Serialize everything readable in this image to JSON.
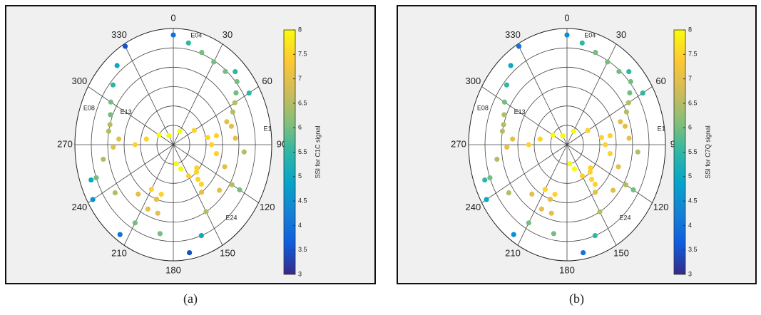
{
  "chart_data": [
    {
      "type": "polar",
      "caption": "(a)",
      "colorbar_label": "SSI for C1C signal",
      "clim": [
        3,
        8
      ],
      "cticks": [
        3,
        3.5,
        4,
        4.5,
        5,
        5.5,
        6,
        6.5,
        7,
        7.5,
        8
      ],
      "thetaticks": [
        0,
        30,
        60,
        90,
        120,
        150,
        180,
        210,
        240,
        270,
        300,
        330
      ],
      "rgrid": [
        15,
        30,
        45,
        60,
        75
      ],
      "rlim": [
        0,
        90
      ],
      "annotations": [
        {
          "text": "E04",
          "az": 14,
          "el": 3
        },
        {
          "text": "E13",
          "az": 300,
          "el": 40
        },
        {
          "text": "E08",
          "az": 290,
          "el": 8
        },
        {
          "text": "E1",
          "az": 82,
          "el": 3
        },
        {
          "text": "E24",
          "az": 137,
          "el": 12
        }
      ],
      "series": [
        {
          "x": [
            330,
            320,
            310,
            300,
            292,
            285,
            280
          ],
          "values": [
            2,
            10,
            18,
            24,
            28,
            30,
            30
          ],
          "ssi": [
            3.5,
            5,
            5.5,
            6,
            6,
            6.5,
            6.5
          ]
        },
        {
          "x": [
            0,
            10,
            20,
            30,
            40,
            50,
            60
          ],
          "values": [
            5,
            10,
            14,
            16,
            16,
            14,
            10
          ],
          "ssi": [
            4,
            5.5,
            6,
            6,
            6,
            6,
            5.5
          ]
        },
        {
          "x": [
            60,
            70,
            80,
            90,
            100,
            110,
            120
          ],
          "values": [
            25,
            38,
            50,
            55,
            50,
            40,
            28
          ],
          "ssi": [
            6.5,
            7,
            7.5,
            7.5,
            7.5,
            7,
            6.5
          ]
        },
        {
          "x": [
            250,
            235,
            220,
            210,
            200,
            195,
            190
          ],
          "values": [
            10,
            25,
            40,
            50,
            45,
            35,
            20
          ],
          "ssi": [
            5,
            6.5,
            7,
            7.5,
            7,
            7,
            6
          ]
        },
        {
          "x": [
            270,
            280,
            300,
            330,
            30,
            60,
            80
          ],
          "values": [
            55,
            65,
            75,
            82,
            78,
            68,
            58
          ],
          "ssi": [
            7.5,
            7.5,
            8,
            8,
            8,
            7.5,
            7.5
          ]
        },
        {
          "x": [
            170,
            160,
            150,
            145,
            140,
            135,
            130
          ],
          "values": [
            5,
            15,
            30,
            45,
            55,
            60,
            62
          ],
          "ssi": [
            3.5,
            5,
            6.5,
            7,
            7.5,
            7.5,
            7.5
          ]
        },
        {
          "x": [
            215,
            210,
            205,
            200,
            196
          ],
          "values": [
            5,
            20,
            35,
            45,
            50
          ],
          "ssi": [
            4,
            6,
            7,
            7,
            7.5
          ]
        },
        {
          "x": [
            240,
            250,
            260,
            268,
            275
          ],
          "values": [
            5,
            15,
            25,
            35,
            40
          ],
          "ssi": [
            4.5,
            6,
            6.5,
            7,
            7
          ]
        },
        {
          "x": [
            45,
            55,
            65,
            75,
            85,
            95
          ],
          "values": [
            10,
            20,
            30,
            35,
            33,
            25
          ],
          "ssi": [
            5.5,
            6,
            6.5,
            7,
            7,
            6.5
          ]
        },
        {
          "x": [
            120,
            130,
            140,
            150,
            160,
            170
          ],
          "values": [
            20,
            35,
            50,
            62,
            70,
            75
          ],
          "ssi": [
            6,
            7,
            7.5,
            7.5,
            8,
            8
          ]
        }
      ]
    },
    {
      "type": "polar",
      "caption": "(b)",
      "colorbar_label": "SSI for C7Q signal",
      "clim": [
        3,
        8
      ],
      "cticks": [
        3,
        3.5,
        4,
        4.5,
        5,
        5.5,
        6,
        6.5,
        7,
        7.5,
        8
      ],
      "thetaticks": [
        0,
        30,
        60,
        90,
        120,
        150,
        180,
        210,
        240,
        270,
        300,
        330
      ],
      "rgrid": [
        15,
        30,
        45,
        60,
        75
      ],
      "rlim": [
        0,
        90
      ],
      "annotations": [
        {
          "text": "E04",
          "az": 14,
          "el": 3
        },
        {
          "text": "E13",
          "az": 300,
          "el": 40
        },
        {
          "text": "E08",
          "az": 290,
          "el": 8
        },
        {
          "text": "E1",
          "az": 82,
          "el": 3
        },
        {
          "text": "E24",
          "az": 137,
          "el": 12
        }
      ],
      "series": [
        {
          "x": [
            330,
            320,
            310,
            300,
            292,
            285,
            280
          ],
          "values": [
            2,
            10,
            18,
            24,
            28,
            30,
            30
          ],
          "ssi": [
            4,
            5,
            5.5,
            6,
            6.5,
            6.5,
            6.5
          ]
        },
        {
          "x": [
            0,
            10,
            20,
            30,
            40,
            50,
            60
          ],
          "values": [
            5,
            10,
            14,
            16,
            16,
            14,
            10
          ],
          "ssi": [
            4.5,
            5.5,
            6,
            6,
            6,
            6,
            5.5
          ]
        },
        {
          "x": [
            60,
            70,
            80,
            90,
            100,
            110,
            120
          ],
          "values": [
            25,
            38,
            50,
            55,
            50,
            40,
            28
          ],
          "ssi": [
            6.5,
            7,
            7.5,
            7.5,
            7.5,
            7,
            6.5
          ]
        },
        {
          "x": [
            250,
            235,
            220,
            210,
            200,
            195,
            190
          ],
          "values": [
            10,
            25,
            40,
            50,
            45,
            35,
            20
          ],
          "ssi": [
            5.5,
            6.5,
            7,
            7.5,
            7,
            7,
            6
          ]
        },
        {
          "x": [
            270,
            280,
            300,
            330,
            30,
            60,
            80
          ],
          "values": [
            55,
            65,
            75,
            82,
            78,
            68,
            58
          ],
          "ssi": [
            7.5,
            7.5,
            8,
            8,
            8,
            7.5,
            7.5
          ]
        },
        {
          "x": [
            170,
            160,
            150,
            145,
            140,
            135,
            130
          ],
          "values": [
            5,
            15,
            30,
            45,
            55,
            60,
            62
          ],
          "ssi": [
            4,
            5.5,
            6.5,
            7,
            7.5,
            7.5,
            7.5
          ]
        },
        {
          "x": [
            215,
            210,
            205,
            200,
            196
          ],
          "values": [
            5,
            20,
            35,
            45,
            50
          ],
          "ssi": [
            4.5,
            6,
            7,
            7,
            7.5
          ]
        },
        {
          "x": [
            240,
            250,
            260,
            268,
            275
          ],
          "values": [
            5,
            15,
            25,
            35,
            40
          ],
          "ssi": [
            5,
            6,
            6.5,
            7,
            7
          ]
        },
        {
          "x": [
            45,
            55,
            65,
            75,
            85,
            95
          ],
          "values": [
            10,
            20,
            30,
            35,
            33,
            25
          ],
          "ssi": [
            5.5,
            6,
            6.5,
            7,
            7,
            6.5
          ]
        },
        {
          "x": [
            120,
            130,
            140,
            150,
            160,
            170
          ],
          "values": [
            20,
            35,
            50,
            62,
            70,
            75
          ],
          "ssi": [
            6,
            7,
            7.5,
            7.5,
            8,
            8
          ]
        }
      ]
    }
  ]
}
